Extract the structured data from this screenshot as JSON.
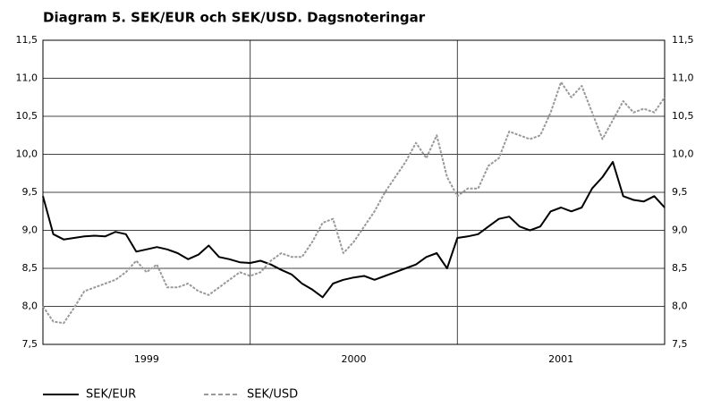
{
  "chart_data": {
    "type": "line",
    "title": "Diagram 5. SEK/EUR och SEK/USD. Dagsnoteringar",
    "categories": [
      "1999",
      "2000",
      "2001"
    ],
    "x": [
      1999,
      1999.05,
      1999.1,
      1999.15,
      1999.2,
      1999.25,
      1999.3,
      1999.35,
      1999.4,
      1999.45,
      1999.5,
      1999.55,
      1999.6,
      1999.65,
      1999.7,
      1999.75,
      1999.8,
      1999.85,
      1999.9,
      1999.95,
      2000,
      2000.05,
      2000.1,
      2000.15,
      2000.2,
      2000.25,
      2000.3,
      2000.35,
      2000.4,
      2000.45,
      2000.5,
      2000.55,
      2000.6,
      2000.65,
      2000.7,
      2000.75,
      2000.8,
      2000.85,
      2000.9,
      2000.95,
      2001,
      2001.05,
      2001.1,
      2001.15,
      2001.2,
      2001.25,
      2001.3,
      2001.35,
      2001.4,
      2001.45,
      2001.5,
      2001.55,
      2001.6,
      2001.65,
      2001.7,
      2001.75,
      2001.8,
      2001.85,
      2001.9,
      2001.95,
      2002
    ],
    "xlim": [
      1999,
      2002
    ],
    "xgrid": [
      2000,
      2001
    ],
    "series": [
      {
        "name": "SEK/EUR",
        "color": "#000000",
        "dash": false,
        "values": [
          9.45,
          8.95,
          8.88,
          8.9,
          8.92,
          8.93,
          8.92,
          8.98,
          8.95,
          8.72,
          8.75,
          8.78,
          8.75,
          8.7,
          8.62,
          8.68,
          8.8,
          8.65,
          8.62,
          8.58,
          8.57,
          8.6,
          8.55,
          8.48,
          8.42,
          8.3,
          8.22,
          8.12,
          8.3,
          8.35,
          8.38,
          8.4,
          8.35,
          8.4,
          8.45,
          8.5,
          8.55,
          8.65,
          8.7,
          8.5,
          8.9,
          8.92,
          8.95,
          9.05,
          9.15,
          9.18,
          9.05,
          9.0,
          9.05,
          9.25,
          9.3,
          9.25,
          9.3,
          9.55,
          9.7,
          9.9,
          9.45,
          9.4,
          9.38,
          9.45,
          9.3
        ]
      },
      {
        "name": "SEK/USD",
        "color": "#999999",
        "dash": true,
        "values": [
          8.0,
          7.8,
          7.78,
          7.98,
          8.2,
          8.25,
          8.3,
          8.35,
          8.45,
          8.6,
          8.45,
          8.55,
          8.25,
          8.25,
          8.3,
          8.2,
          8.15,
          8.25,
          8.35,
          8.45,
          8.4,
          8.45,
          8.6,
          8.7,
          8.65,
          8.65,
          8.85,
          9.1,
          9.15,
          8.7,
          8.85,
          9.05,
          9.25,
          9.5,
          9.7,
          9.9,
          10.15,
          9.95,
          10.25,
          9.7,
          9.45,
          9.55,
          9.55,
          9.85,
          9.95,
          10.3,
          10.25,
          10.2,
          10.25,
          10.55,
          10.95,
          10.75,
          10.9,
          10.55,
          10.2,
          10.45,
          10.7,
          10.55,
          10.6,
          10.55,
          10.75
        ]
      }
    ],
    "ylim": [
      7.5,
      11.5
    ],
    "yticks": [
      {
        "value": 7.5,
        "label": "7,5"
      },
      {
        "value": 8,
        "label": "8,0"
      },
      {
        "value": 8.5,
        "label": "8,5"
      },
      {
        "value": 9,
        "label": "9,0"
      },
      {
        "value": 9.5,
        "label": "9,5"
      },
      {
        "value": 10,
        "label": "10,0"
      },
      {
        "value": 10.5,
        "label": "10,5"
      },
      {
        "value": 11,
        "label": "11,0"
      },
      {
        "value": 11.5,
        "label": "11,5"
      }
    ],
    "grid": true
  }
}
